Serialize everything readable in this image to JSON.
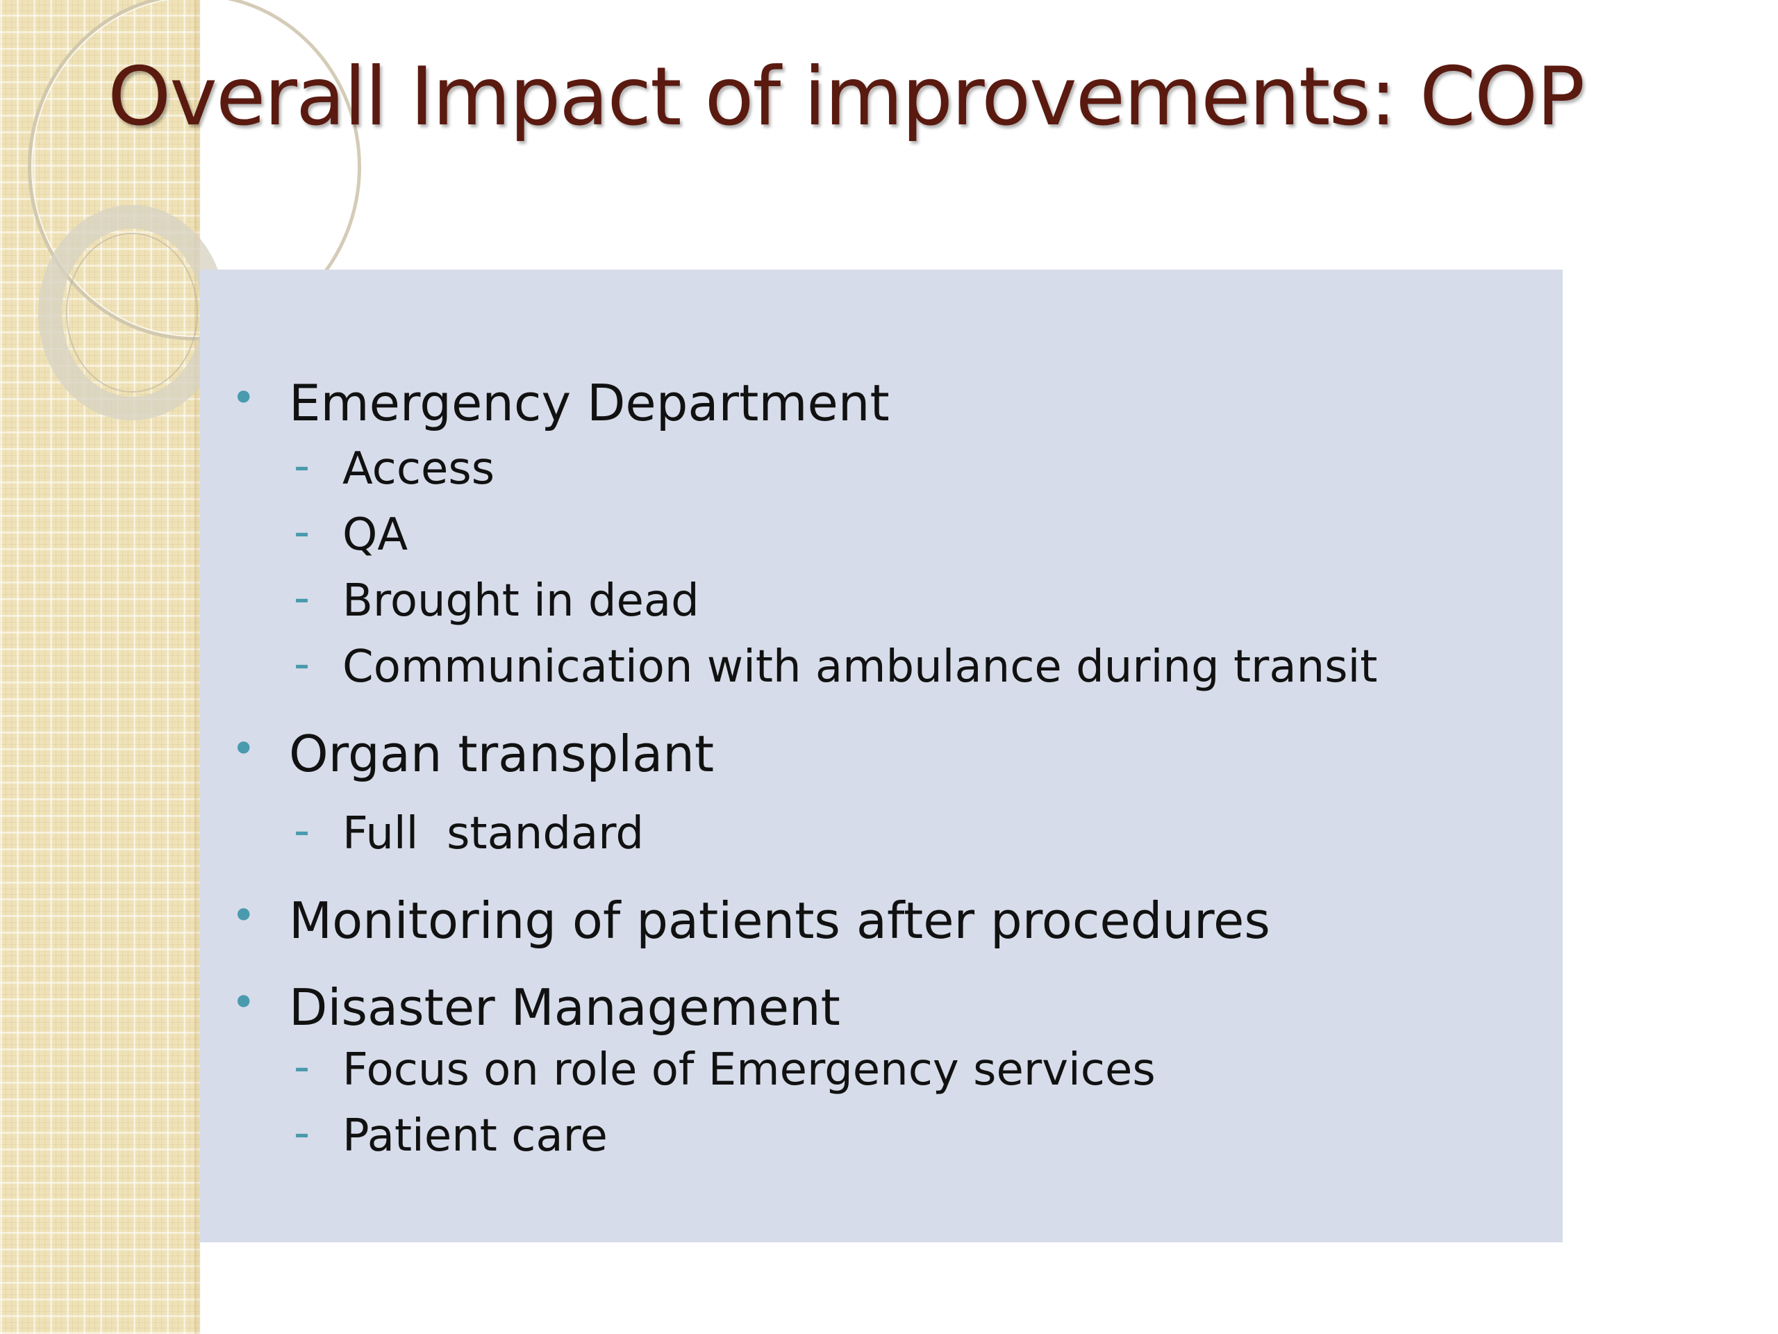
{
  "slide": {
    "title": "Overall Impact of improvements: COP",
    "bullet_marker": "•",
    "sub_marker": "-",
    "items": [
      {
        "level": 1,
        "text": "Emergency Department"
      },
      {
        "level": 2,
        "text": "Access"
      },
      {
        "level": 2,
        "text": "QA"
      },
      {
        "level": 2,
        "text": "Brought in dead"
      },
      {
        "level": 2,
        "text": "Communication with ambulance during transit"
      },
      {
        "level": 1,
        "text": "Organ transplant"
      },
      {
        "level": 2,
        "text": "Full  standard"
      },
      {
        "level": 1,
        "text": "Monitoring of patients after procedures"
      },
      {
        "level": 1,
        "text": "Disaster Management"
      },
      {
        "level": 2,
        "text": "Focus on role of Emergency services"
      },
      {
        "level": 2,
        "text": "Patient care"
      }
    ]
  },
  "colors": {
    "title": "#5a1a10",
    "content_background": "#d6dce9",
    "bullet": "#4a9aae",
    "side_strip": "#efe2b8"
  }
}
